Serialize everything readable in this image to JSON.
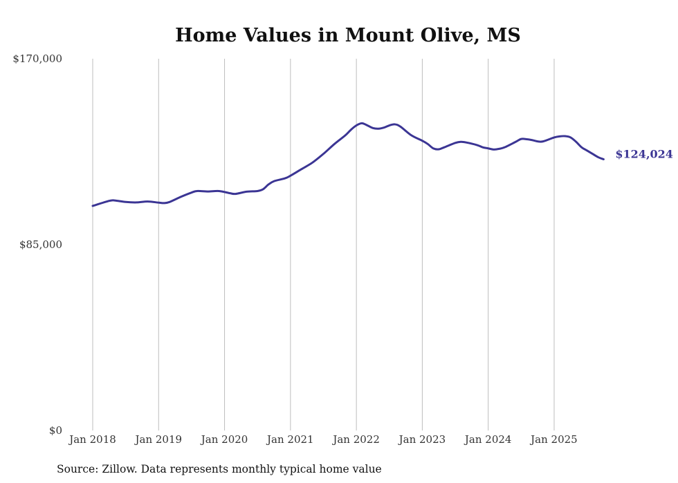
{
  "chart_data": {
    "type": "line",
    "title": "Home Values in Mount Olive, MS",
    "xlabel": "",
    "ylabel": "",
    "ylim": [
      0,
      170000
    ],
    "y_ticks": [
      0,
      85000,
      170000
    ],
    "y_tick_labels": [
      "$0",
      "$85,000",
      "$170,000"
    ],
    "x_tick_labels": [
      "Jan 2018",
      "Jan 2019",
      "Jan 2020",
      "Jan 2021",
      "Jan 2022",
      "Jan 2023",
      "Jan 2024",
      "Jan 2025"
    ],
    "x_unit": "months since Jan 2018",
    "grid": "vertical",
    "line_color": "#3b3594",
    "end_label": "$124,024",
    "series": [
      {
        "name": "Typical home value",
        "points": [
          [
            0,
            102700
          ],
          [
            3,
            105000
          ],
          [
            4,
            105200
          ],
          [
            6,
            104500
          ],
          [
            8,
            104300
          ],
          [
            10,
            104700
          ],
          [
            12,
            104200
          ],
          [
            13,
            104000
          ],
          [
            14,
            104500
          ],
          [
            16,
            106800
          ],
          [
            18,
            108800
          ],
          [
            19,
            109500
          ],
          [
            21,
            109300
          ],
          [
            23,
            109500
          ],
          [
            25,
            108500
          ],
          [
            26,
            108200
          ],
          [
            28,
            109200
          ],
          [
            30,
            109500
          ],
          [
            31,
            110300
          ],
          [
            32,
            112500
          ],
          [
            33,
            114000
          ],
          [
            35,
            115300
          ],
          [
            36,
            116500
          ],
          [
            38,
            119500
          ],
          [
            40,
            122500
          ],
          [
            42,
            126500
          ],
          [
            44,
            131000
          ],
          [
            46,
            135000
          ],
          [
            47,
            137500
          ],
          [
            48,
            139500
          ],
          [
            49,
            140500
          ],
          [
            50,
            139500
          ],
          [
            51,
            138300
          ],
          [
            52,
            138000
          ],
          [
            53,
            138500
          ],
          [
            54,
            139500
          ],
          [
            55,
            140000
          ],
          [
            56,
            139000
          ],
          [
            58,
            135000
          ],
          [
            60,
            132500
          ],
          [
            61,
            131000
          ],
          [
            62,
            129000
          ],
          [
            63,
            128600
          ],
          [
            64,
            129500
          ],
          [
            66,
            131500
          ],
          [
            67,
            132000
          ],
          [
            68,
            131700
          ],
          [
            70,
            130500
          ],
          [
            71,
            129500
          ],
          [
            72,
            129000
          ],
          [
            73,
            128500
          ],
          [
            74,
            128800
          ],
          [
            75,
            129500
          ],
          [
            77,
            132000
          ],
          [
            78,
            133300
          ],
          [
            79,
            133200
          ],
          [
            80,
            132800
          ],
          [
            81,
            132200
          ],
          [
            82,
            132200
          ],
          [
            84,
            134000
          ],
          [
            85,
            134500
          ],
          [
            86,
            134600
          ],
          [
            87,
            134000
          ],
          [
            88,
            132000
          ],
          [
            89,
            129500
          ],
          [
            90,
            128000
          ],
          [
            91,
            126500
          ],
          [
            92,
            125000
          ],
          [
            93,
            124024
          ]
        ]
      }
    ]
  },
  "source": "Source: Zillow. Data represents monthly typical home value"
}
